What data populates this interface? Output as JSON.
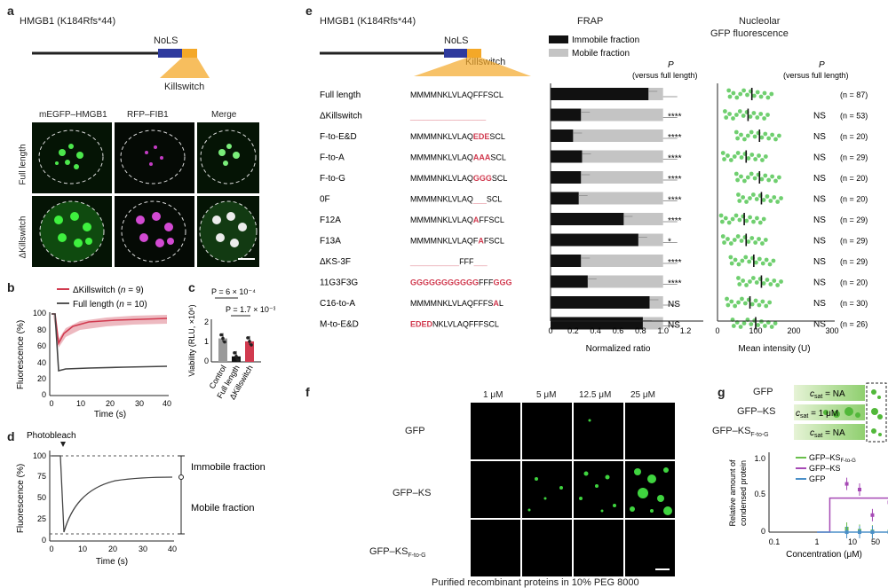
{
  "panel_labels": {
    "a": "a",
    "b": "b",
    "c": "c",
    "d": "d",
    "e": "e",
    "f": "f",
    "g": "g"
  },
  "colors": {
    "nols": "#2e3a9e",
    "killswitch": "#f4a828",
    "red": "#d13a4f",
    "gray": "#9a9a9a",
    "black": "#111111",
    "purple": "#a64ab5",
    "lightgreen": "#69bf4b",
    "blue": "#4a8fc8",
    "green": "#3fd43f"
  },
  "panel_a": {
    "title": "HMGB1 (K184Rfs*44)",
    "nols": "NoLS",
    "killswitch": "Killswitch",
    "columns": [
      "mEGFP–HMGB1",
      "RFP–FIB1",
      "Merge"
    ],
    "rows": [
      "Full length",
      "ΔKillswitch"
    ]
  },
  "panel_b": {
    "legend": [
      {
        "pre": "ΔKillswitch (",
        "n": "n",
        "post": " = 9)"
      },
      {
        "pre": "Full length (",
        "n": "n",
        "post": " = 10)"
      }
    ],
    "ylabel": "Fluorescence (%)",
    "xlabel": "Time (s)",
    "yticks": [
      "0",
      "20",
      "40",
      "60",
      "80",
      "100"
    ],
    "xticks": [
      "0",
      "10",
      "20",
      "30",
      "40"
    ]
  },
  "panel_c": {
    "p1": "P = 6 × 10⁻⁴",
    "p2": "P = 1.7 × 10⁻³",
    "ylabel": "Viability (RLU, ×10⁶)",
    "yticks": [
      "0",
      "1",
      "2"
    ],
    "categories": [
      "Control",
      "Full length",
      "ΔKillswitch"
    ],
    "values": [
      1.2,
      0.28,
      1.05
    ]
  },
  "panel_d": {
    "photobleach": "Photobleach",
    "immobile": "Immobile fraction",
    "mobile": "Mobile fraction",
    "ylabel": "Fluorescence (%)",
    "xlabel": "Time (s)",
    "yticks": [
      "0",
      "25",
      "50",
      "75",
      "100"
    ],
    "xticks": [
      "0",
      "10",
      "20",
      "30",
      "40"
    ]
  },
  "panel_e": {
    "title": "HMGB1 (K184Rfs*44)",
    "nols": "NoLS",
    "killswitch": "Killswitch",
    "frap_title": "FRAP",
    "legend_immobile": "Immobile fraction",
    "legend_mobile": "Mobile fraction",
    "p_header": "P",
    "p_sub": "(versus full length)",
    "nucleolar_title_1": "Nucleolar",
    "nucleolar_title_2": "GFP fluorescence",
    "xlabel_ratio": "Normalized ratio",
    "xticks_ratio": [
      "0",
      "0.2",
      "0.4",
      "0.6",
      "0.8",
      "1.0",
      "1.2"
    ],
    "xlabel_intensity": "Mean intensity (U)",
    "xticks_intensity": [
      "0",
      "100",
      "200",
      "300"
    ],
    "rows": [
      {
        "name": "Full length",
        "seq": [
          [
            "MMMMNKLVLAQFFFSCL",
            0
          ]
        ],
        "immobile": 0.87,
        "p": "",
        "pfl": "NS_hide",
        "ns": "",
        "n": "(n = 87)",
        "mean": 90
      },
      {
        "name": "ΔKillswitch",
        "seq": [
          [
            "_________________",
            2
          ]
        ],
        "immobile": 0.27,
        "p": "****",
        "ns": "NS",
        "n": "(n = 53)",
        "mean": 80
      },
      {
        "name": "F-to-E&D",
        "seq": [
          [
            "MMMMNKLVLAQ",
            0
          ],
          [
            "EDE",
            1
          ],
          [
            "SCL",
            0
          ]
        ],
        "immobile": 0.2,
        "p": "****",
        "ns": "NS",
        "n": "(n = 20)",
        "mean": 110
      },
      {
        "name": "F-to-A",
        "seq": [
          [
            "MMMMNKLVLAQ",
            0
          ],
          [
            "AAA",
            1
          ],
          [
            "SCL",
            0
          ]
        ],
        "immobile": 0.28,
        "p": "****",
        "ns": "NS",
        "n": "(n = 29)",
        "mean": 75
      },
      {
        "name": "F-to-G",
        "seq": [
          [
            "MMMMNKLVLAQ",
            0
          ],
          [
            "GGG",
            1
          ],
          [
            "SCL",
            0
          ]
        ],
        "immobile": 0.27,
        "p": "****",
        "ns": "NS",
        "n": "(n = 20)",
        "mean": 110
      },
      {
        "name": "0F",
        "seq": [
          [
            "MMMMNKLVLAQ",
            0
          ],
          [
            "___",
            2
          ],
          [
            "SCL",
            0
          ]
        ],
        "immobile": 0.25,
        "p": "****",
        "ns": "NS",
        "n": "(n = 20)",
        "mean": 115
      },
      {
        "name": "F12A",
        "seq": [
          [
            "MMMMNKLVLAQ",
            0
          ],
          [
            "A",
            1
          ],
          [
            "FFSCL",
            0
          ]
        ],
        "immobile": 0.65,
        "p": "****",
        "ns": "NS",
        "n": "(n = 29)",
        "mean": 70
      },
      {
        "name": "F13A",
        "seq": [
          [
            "MMMMNKLVLAQF",
            0
          ],
          [
            "A",
            1
          ],
          [
            "FSCL",
            0
          ]
        ],
        "immobile": 0.78,
        "p": "*",
        "ns": "NS",
        "n": "(n = 29)",
        "mean": 75
      },
      {
        "name": "ΔKS-3F",
        "seq": [
          [
            "___________",
            2
          ],
          [
            "FFF",
            0
          ],
          [
            "___",
            2
          ]
        ],
        "immobile": 0.27,
        "p": "****",
        "ns": "NS",
        "n": "(n = 29)",
        "mean": 95
      },
      {
        "name": "11G3F3G",
        "seq": [
          [
            "GGGGGGGGGGG",
            1
          ],
          [
            "FFF",
            0
          ],
          [
            "GGG",
            1
          ]
        ],
        "immobile": 0.33,
        "p": "****",
        "ns": "NS",
        "n": "(n = 20)",
        "mean": 115
      },
      {
        "name": "C16-to-A",
        "seq": [
          [
            "MMMMNKLVLAQFFFS",
            0
          ],
          [
            "A",
            1
          ],
          [
            "L",
            0
          ]
        ],
        "immobile": 0.88,
        "p": "NS",
        "ns": "NS",
        "n": "(n = 30)",
        "mean": 85
      },
      {
        "name": "M-to-E&D",
        "seq": [
          [
            "EDED",
            1
          ],
          [
            "NKLVLAQFFFSCL",
            0
          ]
        ],
        "immobile": 0.82,
        "p": "NS",
        "ns": "NS",
        "n": "(n = 26)",
        "mean": 100
      }
    ]
  },
  "panel_f": {
    "columns": [
      "1 μM",
      "5 μM",
      "12.5 μM",
      "25 μM"
    ],
    "rows": [
      {
        "main": "GFP",
        "sub": ""
      },
      {
        "main": "GFP–KS",
        "sub": ""
      },
      {
        "main": "GFP–KS",
        "sub": "F-to-G"
      }
    ],
    "caption": "Purified recombinant proteins in 10% PEG 8000"
  },
  "panel_g": {
    "rows": [
      {
        "main": "GFP",
        "sub": "",
        "csat_pre": "c",
        "csat_sub": "sat",
        "csat_post": " = NA"
      },
      {
        "main": "GFP–KS",
        "sub": "",
        "csat_pre": "c",
        "csat_sub": "sat",
        "csat_post": " = 1 μM"
      },
      {
        "main": "GFP–KS",
        "sub": "F-to-G",
        "csat_pre": "c",
        "csat_sub": "sat",
        "csat_post": " = NA"
      }
    ],
    "legend": [
      {
        "main": "GFP–KS",
        "sub": "F-to-G"
      },
      {
        "main": "GFP–KS",
        "sub": ""
      },
      {
        "main": "GFP",
        "sub": ""
      }
    ],
    "ylabel_1": "Relative amount of",
    "ylabel_2": "condensed protein",
    "xlabel": "Concentration (μM)",
    "yticks": [
      "0",
      "0.5",
      "1.0"
    ],
    "xticks": [
      "0.1",
      "1",
      "10",
      "50"
    ],
    "series_ks": [
      [
        5,
        0.68
      ],
      [
        10,
        0.6
      ],
      [
        20,
        0.24
      ],
      [
        50,
        0.42
      ]
    ],
    "series_ksftog": [
      [
        5,
        0.05
      ],
      [
        10,
        0.02
      ],
      [
        20,
        0.01
      ],
      [
        50,
        0.01
      ]
    ],
    "series_gfp": [
      [
        5,
        0.0
      ],
      [
        10,
        0.0
      ],
      [
        20,
        0.0
      ],
      [
        50,
        0.0
      ]
    ]
  }
}
